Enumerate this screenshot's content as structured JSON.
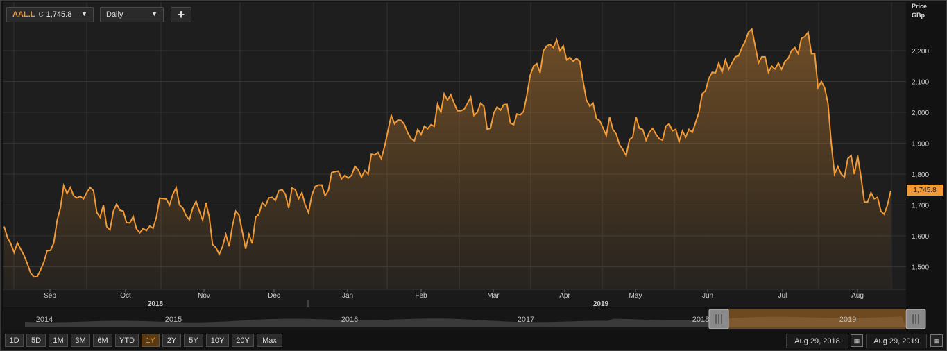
{
  "toolbar": {
    "symbol": "AAL.L",
    "close_label": "C",
    "close_value": "1,745.8",
    "interval": "Daily",
    "add_label": "+"
  },
  "axis_title": {
    "line1": "Price",
    "line2": "GBp"
  },
  "colors": {
    "accent": "#f29a35",
    "background": "#121212",
    "plot_bg": "#1e1e1e",
    "grid": "#343434"
  },
  "range_buttons": [
    "1D",
    "5D",
    "1M",
    "3M",
    "6M",
    "YTD",
    "1Y",
    "2Y",
    "5Y",
    "10Y",
    "20Y",
    "Max"
  ],
  "selected_range": "1Y",
  "date_range": {
    "from": "Aug 29, 2018",
    "to": "Aug 29, 2019"
  },
  "navigator": {
    "years": [
      "2014",
      "2015",
      "2016",
      "2017",
      "2018",
      "2019"
    ],
    "selected_year": "2019",
    "handle_left_icon": "grip-icon",
    "handle_right_icon": "grip-icon"
  },
  "chart_data": {
    "type": "area",
    "ylabel": "Price GBp",
    "y_ticks": [
      "1,500",
      "1,600",
      "1,700",
      "1,800",
      "1,900",
      "2,000",
      "2,100",
      "2,200"
    ],
    "ylim": [
      1430,
      2320
    ],
    "x_ticks": [
      "Sep",
      "Oct",
      "Nov",
      "Dec",
      "Jan",
      "Feb",
      "Mar",
      "Apr",
      "May",
      "Jun",
      "Jul",
      "Aug"
    ],
    "x_year_labels": [
      "2018",
      "2019"
    ],
    "grid": true,
    "last_value_label": "1,745.8",
    "series": [
      {
        "values": [
          1630,
          1594,
          1575,
          1546,
          1577,
          1557,
          1537,
          1510,
          1480,
          1467,
          1468,
          1490,
          1515,
          1552,
          1553,
          1577,
          1650,
          1690,
          1763,
          1737,
          1757,
          1730,
          1723,
          1728,
          1720,
          1741,
          1757,
          1746,
          1676,
          1660,
          1700,
          1630,
          1620,
          1680,
          1703,
          1683,
          1680,
          1643,
          1642,
          1663,
          1623,
          1610,
          1624,
          1617,
          1632,
          1625,
          1660,
          1722,
          1721,
          1719,
          1700,
          1735,
          1756,
          1700,
          1690,
          1665,
          1652,
          1690,
          1712,
          1680,
          1651,
          1707,
          1660,
          1572,
          1562,
          1540,
          1565,
          1605,
          1566,
          1632,
          1680,
          1667,
          1613,
          1558,
          1605,
          1575,
          1660,
          1670,
          1708,
          1697,
          1723,
          1725,
          1715,
          1746,
          1750,
          1735,
          1690,
          1755,
          1750,
          1720,
          1740,
          1700,
          1675,
          1732,
          1760,
          1765,
          1765,
          1730,
          1747,
          1805,
          1808,
          1810,
          1785,
          1796,
          1787,
          1796,
          1825,
          1815,
          1790,
          1812,
          1800,
          1865,
          1862,
          1870,
          1850,
          1890,
          1940,
          1990,
          1963,
          1975,
          1974,
          1960,
          1933,
          1915,
          1908,
          1945,
          1928,
          1955,
          1947,
          1960,
          1955,
          2027,
          2000,
          2060,
          2040,
          2057,
          2030,
          2005,
          2005,
          2010,
          2028,
          2050,
          1990,
          2000,
          2030,
          2020,
          1945,
          1948,
          1998,
          2018,
          2007,
          2025,
          2026,
          1965,
          1960,
          1995,
          1992,
          2003,
          2055,
          2120,
          2150,
          2158,
          2128,
          2200,
          2215,
          2220,
          2210,
          2235,
          2200,
          2215,
          2170,
          2178,
          2165,
          2175,
          2165,
          2100,
          2040,
          2020,
          2030,
          1980,
          1973,
          1950,
          1925,
          1985,
          1945,
          1930,
          1895,
          1880,
          1860,
          1912,
          1920,
          1985,
          1948,
          1945,
          1910,
          1935,
          1948,
          1930,
          1915,
          1910,
          1955,
          1963,
          1940,
          1945,
          1905,
          1940,
          1920,
          1945,
          1935,
          1967,
          2000,
          2060,
          2070,
          2110,
          2130,
          2128,
          2160,
          2130,
          2170,
          2140,
          2160,
          2180,
          2183,
          2210,
          2230,
          2260,
          2270,
          2215,
          2160,
          2180,
          2180,
          2130,
          2150,
          2140,
          2160,
          2140,
          2165,
          2175,
          2200,
          2210,
          2190,
          2240,
          2245,
          2260,
          2190,
          2190,
          2080,
          2100,
          2080,
          2030,
          1900,
          1800,
          1825,
          1800,
          1790,
          1850,
          1860,
          1800,
          1860,
          1790,
          1710,
          1710,
          1740,
          1720,
          1725,
          1680,
          1670,
          1700,
          1745.8
        ]
      }
    ]
  }
}
